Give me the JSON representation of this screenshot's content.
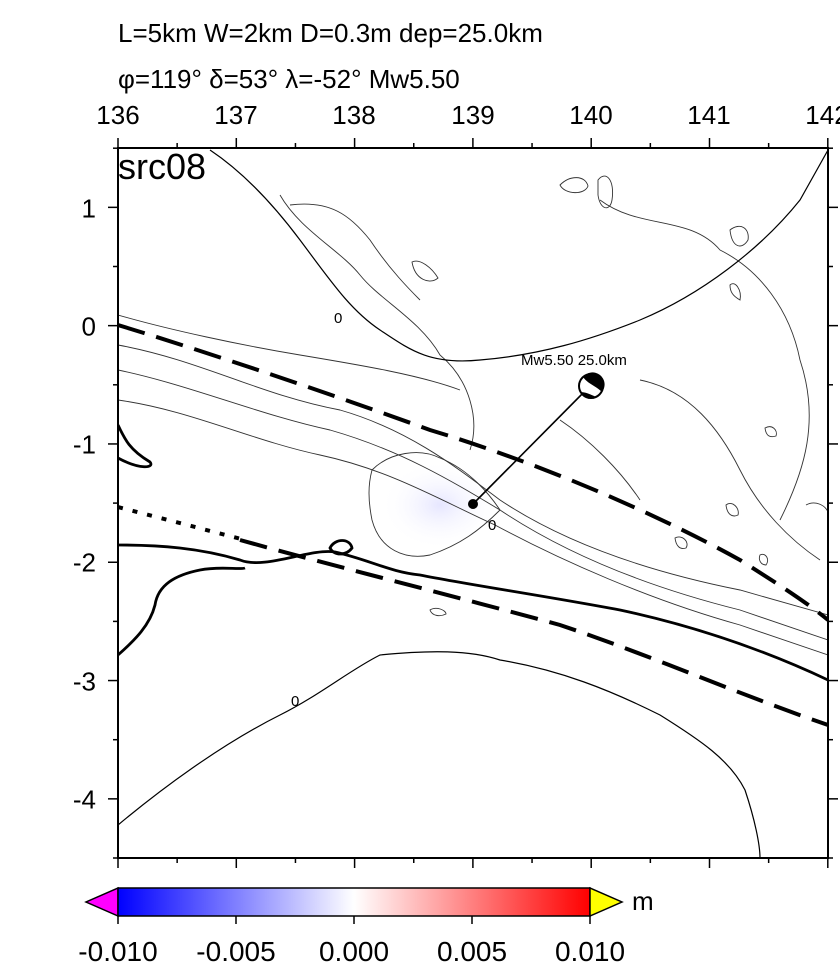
{
  "header": {
    "line1": "L=5km W=2km D=0.3m dep=25.0km",
    "line2": "φ=119° δ=53° λ=-52° Mw5.50"
  },
  "panel_label": "src08",
  "x_ticks": [
    "136",
    "137",
    "138",
    "139",
    "140",
    "141",
    "142"
  ],
  "y_ticks": [
    "1",
    "0",
    "-1",
    "-2",
    "-3",
    "-4"
  ],
  "contour_labels": [
    "0",
    "0",
    "0"
  ],
  "earthquake": {
    "label": "Mw5.50 25.0km",
    "lon": 139.0,
    "lat": -1.5,
    "strike": 119,
    "dip": 53,
    "rake": -52,
    "magnitude": 5.5,
    "depth_km": 25.0
  },
  "colorbar": {
    "ticks": [
      "-0.010",
      "-0.005",
      "0.000",
      "0.005",
      "0.010"
    ],
    "unit": "m",
    "colors": {
      "low_overflow": "#ff00ff",
      "low": "#0000ff",
      "mid": "#ffffff",
      "high": "#ff0000",
      "high_overflow": "#ffff00"
    }
  },
  "map_extent": {
    "lon_min": 136,
    "lon_max": 142,
    "lat_min": -4.5,
    "lat_max": 1.5
  }
}
